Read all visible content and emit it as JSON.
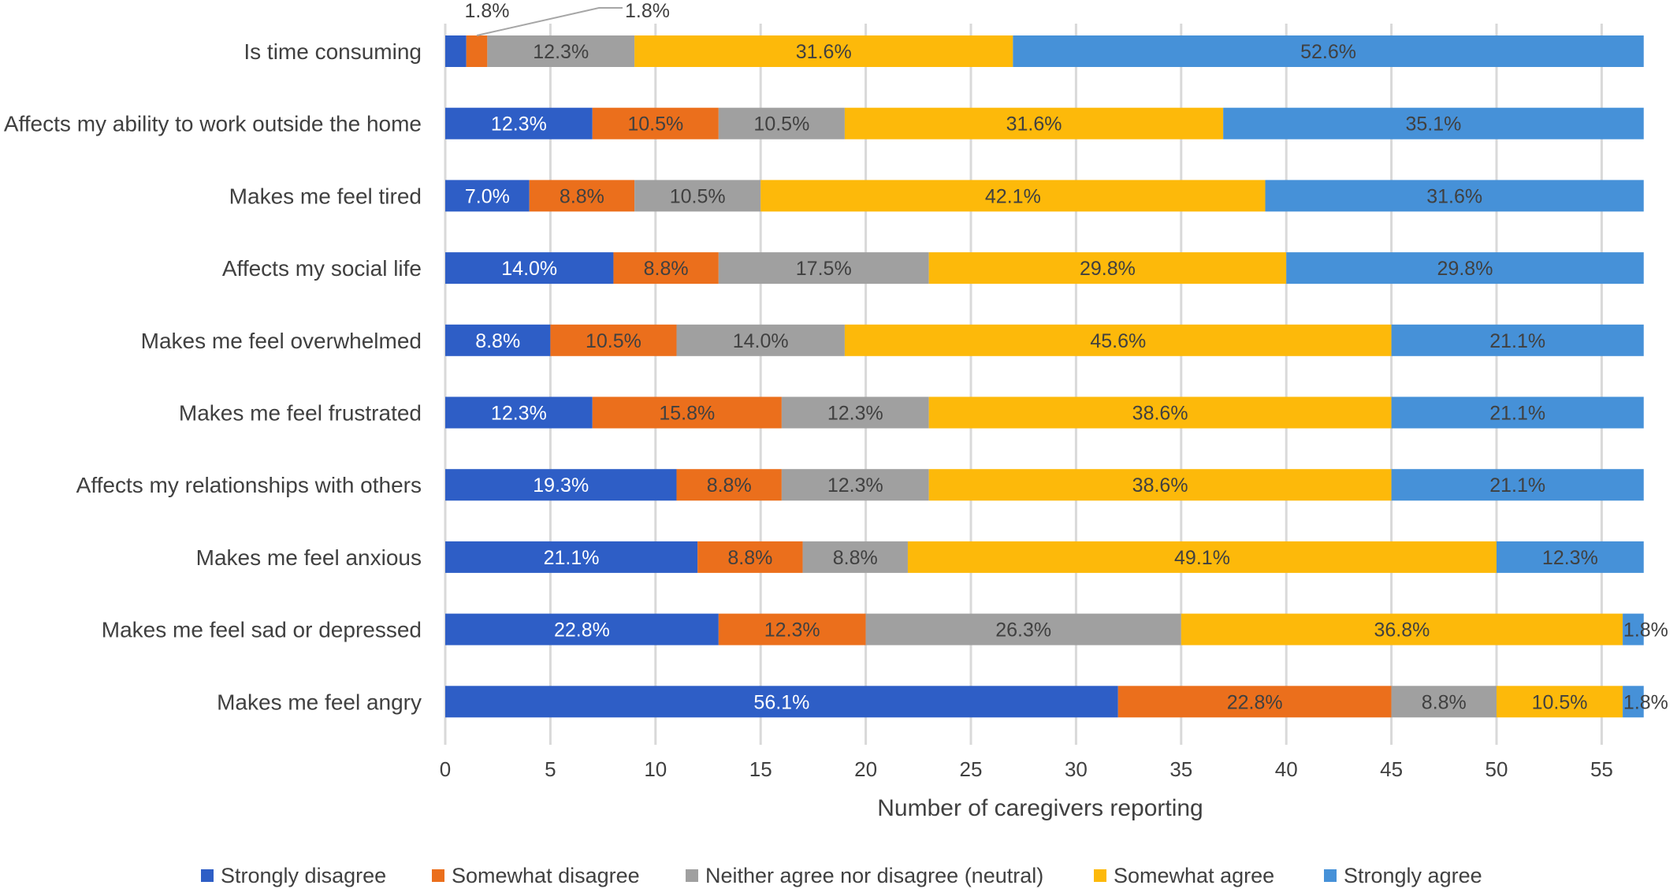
{
  "chart_data": {
    "type": "bar",
    "orientation": "horizontal",
    "stacked": true,
    "xlabel": "Number of caregivers reporting",
    "xlim": [
      0,
      57
    ],
    "xticks": [
      "0",
      "5",
      "10",
      "15",
      "20",
      "25",
      "30",
      "35",
      "40",
      "45",
      "50",
      "55"
    ],
    "grid": true,
    "legend_position": "bottom",
    "categories": [
      "Is time consuming",
      "Affects my ability to work outside the home",
      "Makes me feel tired",
      "Affects my social life",
      "Makes me feel overwhelmed",
      "Makes me feel frustrated",
      "Affects my relationships with others",
      "Makes me feel anxious",
      "Makes me feel sad or depressed",
      "Makes me feel angry"
    ],
    "series": [
      {
        "name": "Strongly disagree",
        "color": "#2e5ec6",
        "label_color": "#ffffff",
        "values": [
          1,
          7,
          4,
          8,
          5,
          7,
          11,
          12,
          13,
          32
        ],
        "labels": [
          "1.8%",
          "12.3%",
          "7.0%",
          "14.0%",
          "8.8%",
          "12.3%",
          "19.3%",
          "21.1%",
          "22.8%",
          "56.1%"
        ]
      },
      {
        "name": "Somewhat disagree",
        "color": "#eb6f1c",
        "label_color": "#404040",
        "values": [
          1,
          6,
          5,
          5,
          6,
          9,
          5,
          5,
          7,
          13
        ],
        "labels": [
          "1.8%",
          "10.5%",
          "8.8%",
          "8.8%",
          "10.5%",
          "15.8%",
          "8.8%",
          "8.8%",
          "12.3%",
          "22.8%"
        ]
      },
      {
        "name": "Neither agree nor disagree (neutral)",
        "color": "#a0a0a0",
        "label_color": "#404040",
        "values": [
          7,
          6,
          6,
          10,
          8,
          7,
          7,
          5,
          15,
          5
        ],
        "labels": [
          "12.3%",
          "10.5%",
          "10.5%",
          "17.5%",
          "14.0%",
          "12.3%",
          "12.3%",
          "8.8%",
          "26.3%",
          "8.8%"
        ]
      },
      {
        "name": "Somewhat agree",
        "color": "#fdb90a",
        "label_color": "#404040",
        "values": [
          18,
          18,
          24,
          17,
          26,
          22,
          22,
          28,
          21,
          6
        ],
        "labels": [
          "31.6%",
          "31.6%",
          "42.1%",
          "29.8%",
          "45.6%",
          "38.6%",
          "38.6%",
          "49.1%",
          "36.8%",
          "10.5%"
        ]
      },
      {
        "name": "Strongly agree",
        "color": "#4691d8",
        "label_color": "#404040",
        "values": [
          30,
          20,
          18,
          17,
          12,
          12,
          12,
          7,
          1,
          1
        ],
        "labels": [
          "52.6%",
          "35.1%",
          "31.6%",
          "29.8%",
          "21.1%",
          "21.1%",
          "21.1%",
          "12.3%",
          "1.8%",
          "1.8%"
        ]
      }
    ]
  }
}
